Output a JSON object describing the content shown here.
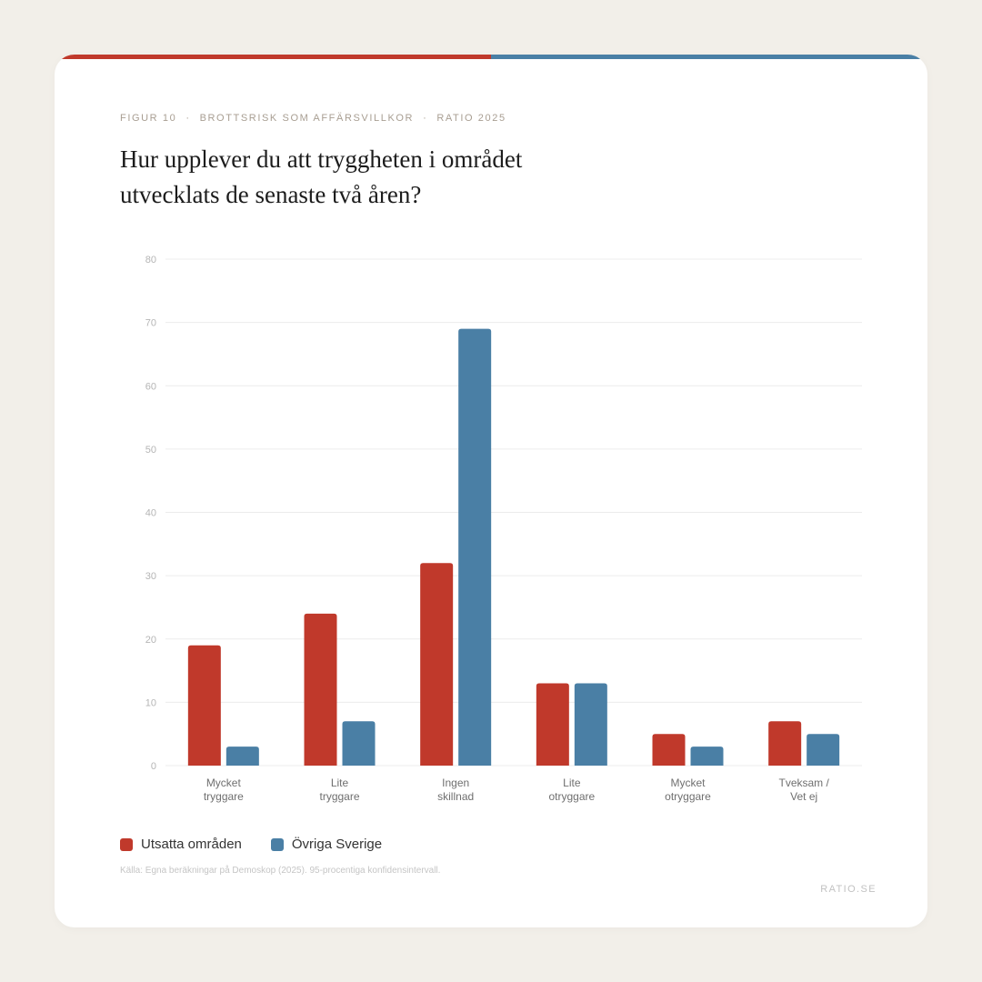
{
  "header": {
    "eyebrow": [
      "Figur 10",
      "Brottsrisk som affärsvillkor",
      "Ratio 2025"
    ],
    "eyebrow_sep": "·",
    "title": "Hur upplever du att tryggheten i området utvecklats de senaste två åren?"
  },
  "colors": {
    "series_a": "#c0392b",
    "series_b": "#4a7fa5",
    "accent_left": "#c0392b",
    "accent_right": "#4a7fa5"
  },
  "chart_data": {
    "type": "bar",
    "categories": [
      [
        "Mycket",
        "tryggare"
      ],
      [
        "Lite",
        "tryggare"
      ],
      [
        "Ingen",
        "skillnad"
      ],
      [
        "Lite",
        "otryggare"
      ],
      [
        "Mycket",
        "otryggare"
      ],
      [
        "Tveksam /",
        "Vet ej"
      ]
    ],
    "series": [
      {
        "name": "Utsatta områden",
        "values": [
          19,
          24,
          32,
          13,
          5,
          7
        ]
      },
      {
        "name": "Övriga Sverige",
        "values": [
          3,
          7,
          69,
          13,
          3,
          5
        ]
      }
    ],
    "ylim": [
      0,
      80
    ],
    "yticks": [
      0,
      10,
      20,
      30,
      40,
      50,
      60,
      70,
      80
    ],
    "grid": true,
    "legend": "bottom-left"
  },
  "legend": {
    "items": [
      "Utsatta områden",
      "Övriga Sverige"
    ]
  },
  "footer": {
    "source": "Källa: Egna beräkningar på Demoskop (2025). 95-procentiga konfidensintervall.",
    "brand": "RATIO.SE"
  }
}
